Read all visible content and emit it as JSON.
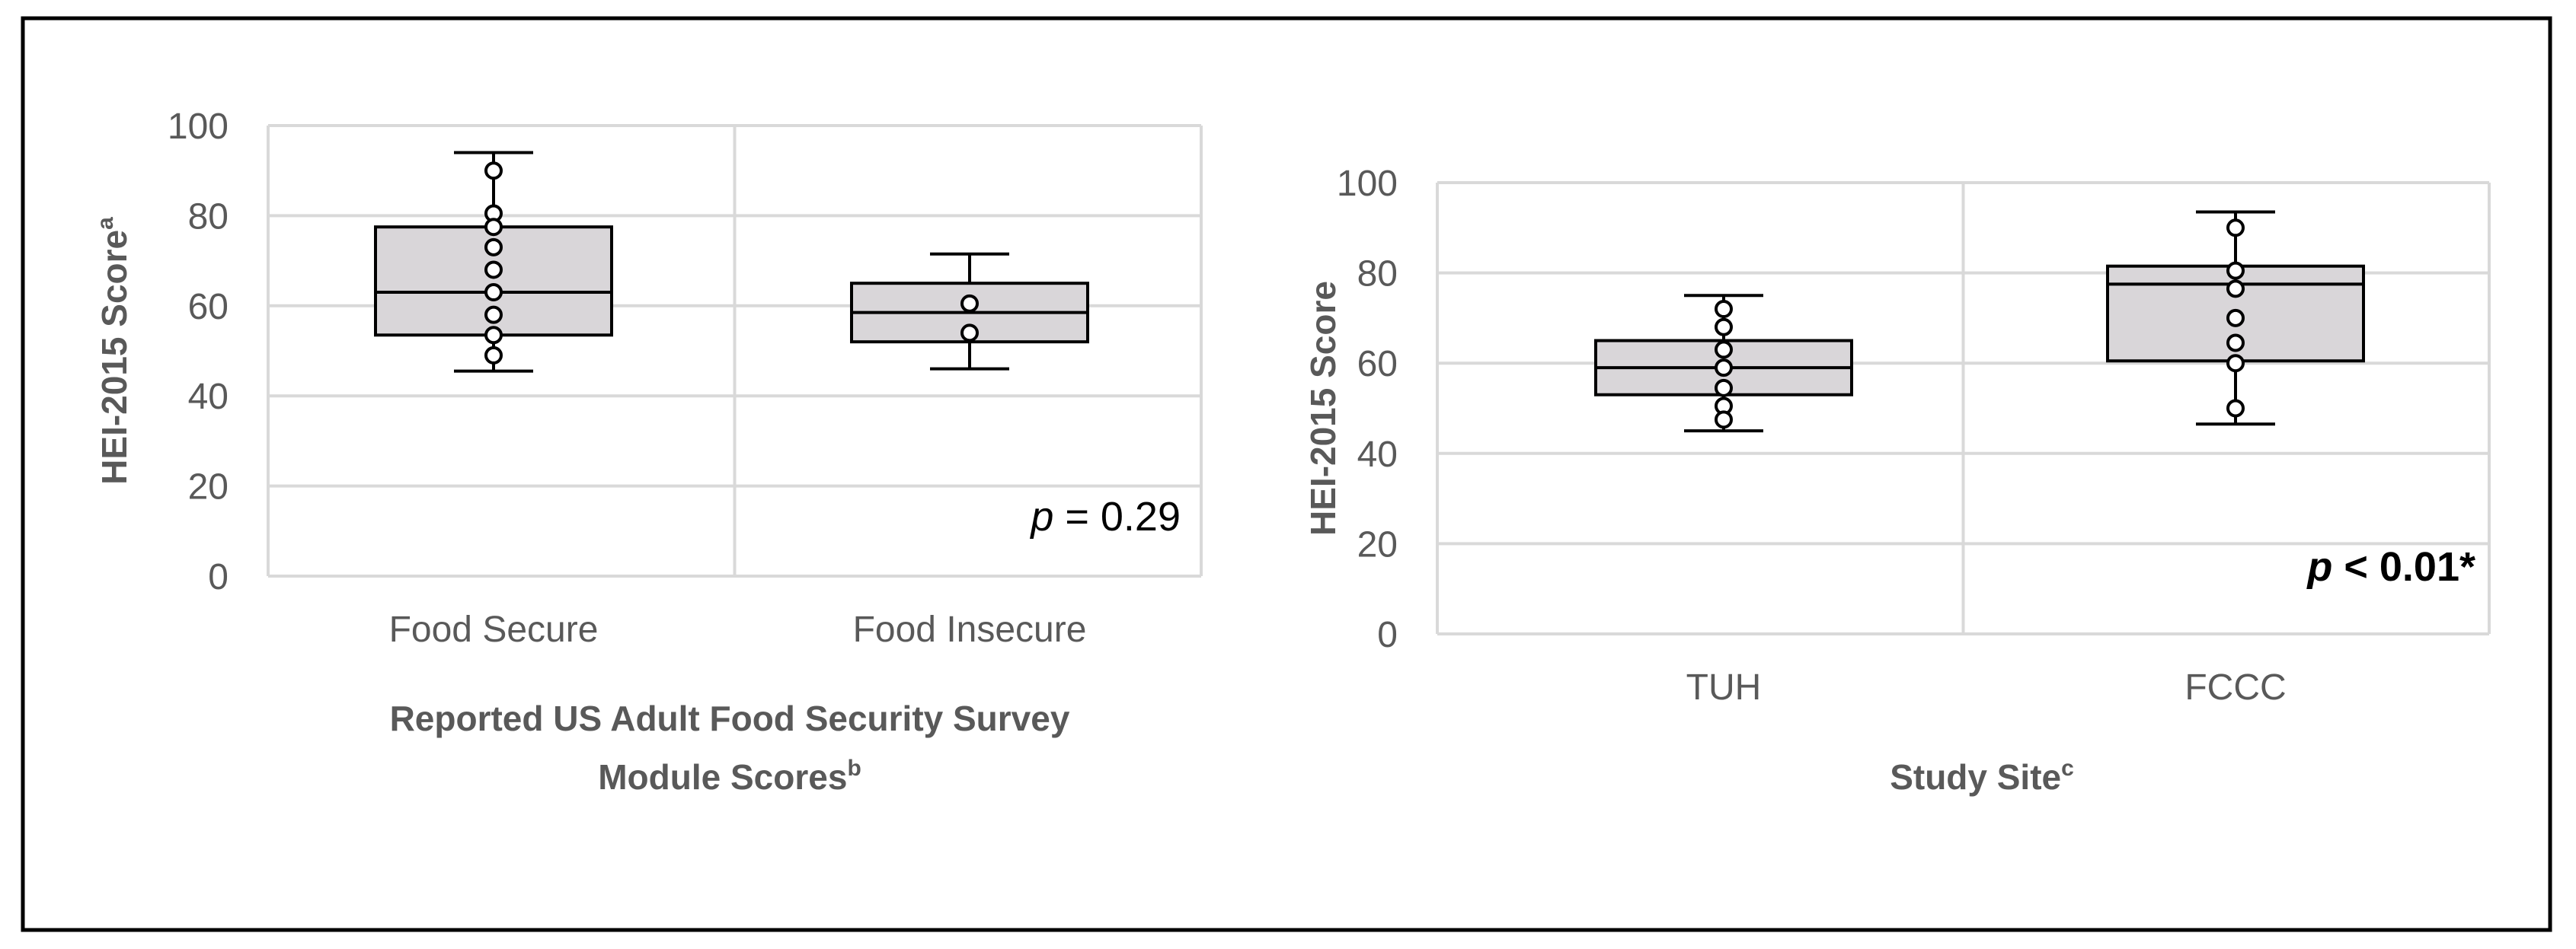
{
  "figure": {
    "colors": {
      "border": "#000000",
      "grid": "#d9d9d9",
      "box_fill": "#d9d6d9",
      "box_stroke": "#000000",
      "text": "#595959",
      "title_text": "#595959",
      "annotation": "#000000"
    }
  },
  "chart_data": [
    {
      "type": "box",
      "title": "",
      "ylabel": "HEI-2015 Score",
      "ylabel_superscript": "a",
      "xlabel_line1": "Reported US Adult Food Security Survey",
      "xlabel_line2": "Module Scores",
      "xlabel_superscript": "b",
      "ylim": [
        0,
        100
      ],
      "yticks": [
        0,
        20,
        40,
        60,
        80,
        100
      ],
      "grid": true,
      "categories": [
        "Food Secure",
        "Food Insecure"
      ],
      "boxes": [
        {
          "name": "Food Secure",
          "min": 45.5,
          "q1": 53.5,
          "median": 63,
          "q3": 77.5,
          "max": 94,
          "points": [
            90,
            80.5,
            77.5,
            73,
            68,
            63,
            58,
            53.5,
            49
          ]
        },
        {
          "name": "Food Insecure",
          "min": 46,
          "q1": 52,
          "median": 58.5,
          "q3": 65,
          "max": 71.5,
          "points": [
            60.5,
            54
          ]
        }
      ],
      "annotation": {
        "italic": "p",
        "text": " = 0.29",
        "bold": false
      }
    },
    {
      "type": "box",
      "title": "",
      "ylabel": "HEI-2015 Score",
      "ylabel_superscript": "",
      "xlabel_line1": "Study Site",
      "xlabel_line2": "",
      "xlabel_superscript": "c",
      "ylim": [
        0,
        100
      ],
      "yticks": [
        0,
        20,
        40,
        60,
        80,
        100
      ],
      "grid": true,
      "categories": [
        "TUH",
        "FCCC"
      ],
      "boxes": [
        {
          "name": "TUH",
          "min": 45,
          "q1": 53,
          "median": 59,
          "q3": 65,
          "max": 75,
          "points": [
            72,
            68,
            63,
            59,
            54.5,
            50.5,
            47.5
          ]
        },
        {
          "name": "FCCC",
          "min": 46.5,
          "q1": 60.5,
          "median": 77.5,
          "q3": 81.5,
          "max": 93.5,
          "points": [
            90,
            80.5,
            76.5,
            70,
            64.5,
            60,
            50
          ]
        }
      ],
      "annotation": {
        "italic": "p",
        "text": " < 0.01*",
        "bold": true
      }
    }
  ]
}
